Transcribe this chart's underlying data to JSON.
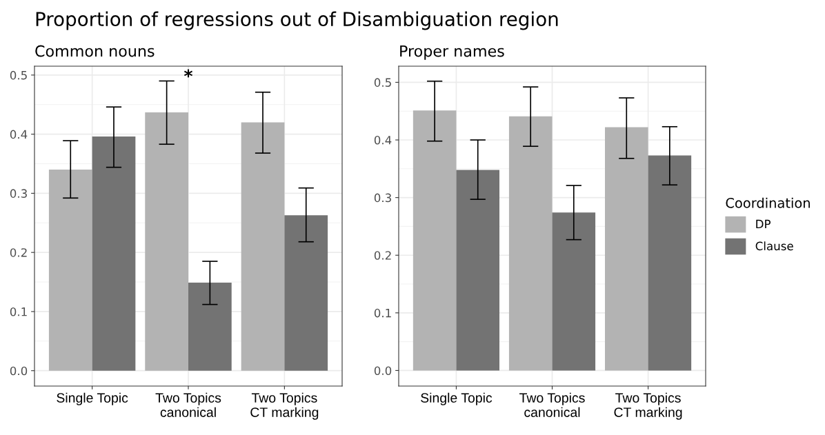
{
  "chart_data": [
    {
      "type": "bar",
      "title": "Proportion of regressions out of Disambiguation region",
      "subtitle": "Common nouns",
      "categories": [
        "Single Topic",
        "Two Topics\ncanonical",
        "Two Topics\nCT marking"
      ],
      "series": [
        {
          "color": "#b3b3b3",
          "values": [
            0.34,
            0.437,
            0.42
          ],
          "errors": [
            [
              0.292,
              0.389
            ],
            [
              0.383,
              0.49
            ],
            [
              0.368,
              0.471
            ]
          ]
        },
        {
          "color": "#737373",
          "values": [
            0.396,
            0.149,
            0.263
          ],
          "errors": [
            [
              0.344,
              0.446
            ],
            [
              0.112,
              0.185
            ],
            [
              0.218,
              0.309
            ]
          ]
        }
      ],
      "ylim": [
        -0.026,
        0.515
      ],
      "yticks": [
        {
          "value": 0,
          "label": "0.0"
        },
        0.1,
        0.2,
        0.3,
        0.4,
        0.5
      ],
      "annotations": [
        "*"
      ],
      "grid": true
    },
    {
      "type": "bar",
      "subtitle": "Proper names",
      "categories": [
        "Single Topic",
        "Two Topics\ncanonical",
        "Two Topics\nCT marking"
      ],
      "series": [
        {
          "name": "DP",
          "color": "#b3b3b3",
          "values": [
            0.451,
            0.441,
            0.422
          ],
          "errors": [
            [
              0.398,
              0.502
            ],
            [
              0.389,
              0.492
            ],
            [
              0.368,
              0.473
            ]
          ]
        },
        {
          "name": "Clause",
          "color": "#737373",
          "values": [
            0.348,
            0.274,
            0.373
          ],
          "errors": [
            [
              0.297,
              0.4
            ],
            [
              0.227,
              0.321
            ],
            [
              0.322,
              0.423
            ]
          ]
        }
      ],
      "ylim": [
        -0.027,
        0.528
      ],
      "yticks": [
        {
          "value": 0,
          "label": "0.0"
        },
        0.1,
        0.2,
        0.3,
        0.4,
        0.5
      ],
      "legend_title": "Coordination",
      "legend": "right",
      "grid": true
    }
  ]
}
